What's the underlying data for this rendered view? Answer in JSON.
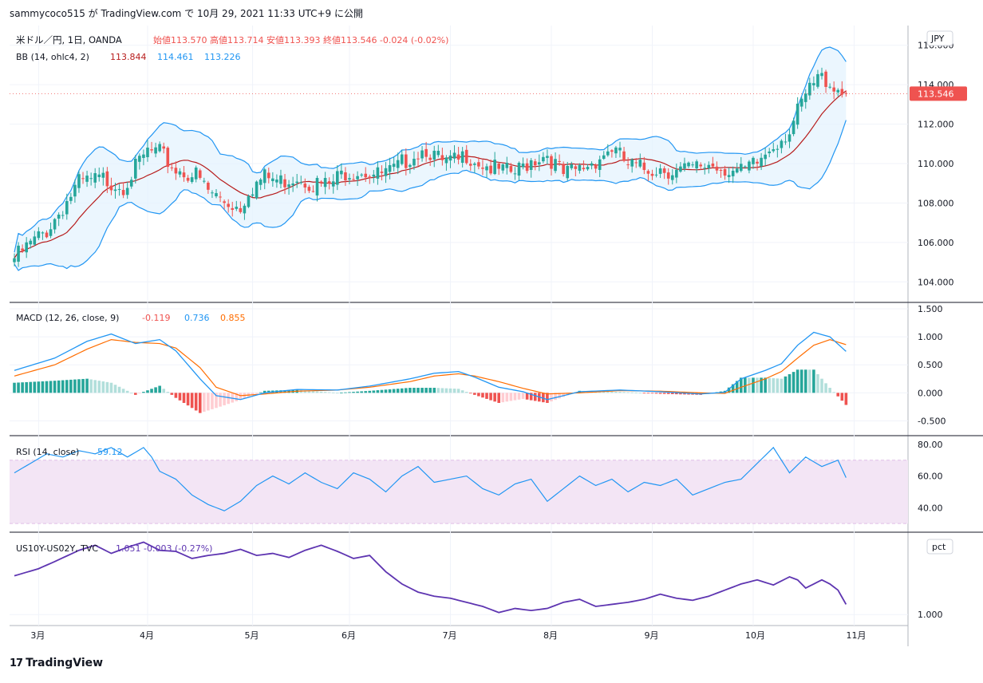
{
  "header": {
    "text": "sammycoco515 が TradingView.com で 10月 29, 2021 11:33 UTC+9 に公開"
  },
  "footer": {
    "logo_text": "TradingView",
    "logo_icon": "tradingview-logo-icon"
  },
  "colors": {
    "up": "#26a69a",
    "down": "#ef5350",
    "bb_basis": "#b71c1c",
    "bb_band": "#2196f3",
    "bb_fill": "#e3f2fd",
    "macd": "#2196f3",
    "signal": "#ff6d00",
    "hist_up": "#26a69a",
    "hist_up_fade": "#b2dfdb",
    "hist_down": "#ef5350",
    "hist_down_fade": "#ffcdd2",
    "rsi": "#2196f3",
    "rsi_band": "#e1bee7",
    "spread": "#5e35b1",
    "grid": "#f0f3fa",
    "price_label_bg": "#ef5350"
  },
  "chart_data": [
    {
      "type": "candlestick",
      "pane": "price",
      "title": "米ドル／円, 1日, OANDA",
      "ohlc_label": "始値113.570 高値113.714 安値113.393 終値113.546 -0.024 (-0.02%)",
      "bb_label_prefix": "BB (14, ohlc4, 2)",
      "bb_values": [
        "113.844",
        "114.461",
        "113.226"
      ],
      "currency": "JPY",
      "last_price_label": "113.546",
      "y_ticks": [
        "116.000",
        "114.000",
        "112.000",
        "110.000",
        "108.000",
        "106.000",
        "104.000"
      ],
      "ylim": [
        103,
        117
      ],
      "x_ticks": [
        "3月",
        "4月",
        "5月",
        "6月",
        "7月",
        "8月",
        "9月",
        "10月",
        "11月"
      ],
      "close_path_knots": [
        [
          0,
          105.2
        ],
        [
          8,
          106.6
        ],
        [
          16,
          109.0
        ],
        [
          22,
          109.2
        ],
        [
          27,
          108.9
        ],
        [
          33,
          110.6
        ],
        [
          36,
          110.5
        ],
        [
          40,
          109.7
        ],
        [
          45,
          109.4
        ],
        [
          48,
          108.6
        ],
        [
          52,
          108.1
        ],
        [
          56,
          107.8
        ],
        [
          58,
          108.7
        ],
        [
          62,
          109.3
        ],
        [
          66,
          109.1
        ],
        [
          70,
          109.4
        ],
        [
          74,
          109.0
        ],
        [
          78,
          108.9
        ],
        [
          82,
          109.6
        ],
        [
          86,
          109.7
        ],
        [
          90,
          109.4
        ],
        [
          94,
          109.6
        ],
        [
          98,
          110.4
        ],
        [
          102,
          110.8
        ],
        [
          106,
          110.0
        ],
        [
          110,
          110.1
        ],
        [
          112,
          110.5
        ],
        [
          116,
          110.0
        ],
        [
          120,
          109.6
        ],
        [
          124,
          109.5
        ],
        [
          128,
          110.2
        ],
        [
          132,
          110.5
        ],
        [
          136,
          109.4
        ],
        [
          140,
          109.7
        ],
        [
          144,
          110.2
        ],
        [
          148,
          110.8
        ],
        [
          152,
          109.9
        ],
        [
          156,
          109.7
        ],
        [
          160,
          109.8
        ],
        [
          164,
          109.6
        ],
        [
          168,
          109.7
        ],
        [
          172,
          110.0
        ],
        [
          176,
          109.8
        ],
        [
          180,
          109.5
        ],
        [
          184,
          110.0
        ],
        [
          188,
          111.0
        ],
        [
          192,
          111.7
        ],
        [
          196,
          113.4
        ],
        [
          199,
          114.3
        ],
        [
          201,
          114.3
        ],
        [
          204,
          113.8
        ],
        [
          206,
          113.55
        ]
      ]
    },
    {
      "type": "line",
      "pane": "macd",
      "label_prefix": "MACD (12, 26, close, 9)",
      "values": [
        "-0.119",
        "0.736",
        "0.855"
      ],
      "y_ticks": [
        "1.500",
        "1.000",
        "0.500",
        "0.000",
        "-0.500"
      ],
      "ylim": [
        -0.75,
        1.6
      ],
      "series": [
        {
          "knots": [
            [
              0,
              0.4
            ],
            [
              10,
              0.62
            ],
            [
              18,
              0.92
            ],
            [
              24,
              1.05
            ],
            [
              30,
              0.88
            ],
            [
              36,
              0.95
            ],
            [
              40,
              0.75
            ],
            [
              46,
              0.25
            ],
            [
              50,
              -0.05
            ],
            [
              56,
              -0.12
            ],
            [
              62,
              0.0
            ],
            [
              70,
              0.06
            ],
            [
              80,
              0.05
            ],
            [
              88,
              0.12
            ],
            [
              98,
              0.25
            ],
            [
              104,
              0.35
            ],
            [
              110,
              0.38
            ],
            [
              114,
              0.28
            ],
            [
              120,
              0.1
            ],
            [
              126,
              0.02
            ],
            [
              132,
              -0.12
            ],
            [
              140,
              0.02
            ],
            [
              150,
              0.05
            ],
            [
              160,
              0.02
            ],
            [
              170,
              -0.02
            ],
            [
              176,
              0.01
            ],
            [
              180,
              0.25
            ],
            [
              186,
              0.4
            ],
            [
              190,
              0.52
            ],
            [
              194,
              0.85
            ],
            [
              198,
              1.08
            ],
            [
              202,
              1.0
            ],
            [
              206,
              0.74
            ]
          ]
        },
        {
          "knots": [
            [
              0,
              0.3
            ],
            [
              10,
              0.5
            ],
            [
              18,
              0.78
            ],
            [
              24,
              0.95
            ],
            [
              30,
              0.9
            ],
            [
              36,
              0.88
            ],
            [
              40,
              0.8
            ],
            [
              46,
              0.45
            ],
            [
              50,
              0.1
            ],
            [
              56,
              -0.05
            ],
            [
              62,
              -0.02
            ],
            [
              70,
              0.03
            ],
            [
              80,
              0.05
            ],
            [
              88,
              0.1
            ],
            [
              98,
              0.2
            ],
            [
              104,
              0.3
            ],
            [
              110,
              0.34
            ],
            [
              114,
              0.3
            ],
            [
              120,
              0.2
            ],
            [
              126,
              0.08
            ],
            [
              132,
              -0.02
            ],
            [
              140,
              0.0
            ],
            [
              150,
              0.04
            ],
            [
              160,
              0.03
            ],
            [
              170,
              0.0
            ],
            [
              176,
              -0.01
            ],
            [
              180,
              0.1
            ],
            [
              186,
              0.25
            ],
            [
              190,
              0.38
            ],
            [
              194,
              0.62
            ],
            [
              198,
              0.85
            ],
            [
              202,
              0.95
            ],
            [
              206,
              0.86
            ]
          ]
        }
      ]
    },
    {
      "type": "line",
      "pane": "rsi",
      "label_prefix": "RSI (14, close)",
      "value": "59.12",
      "y_ticks": [
        "80.00",
        "60.00",
        "40.00"
      ],
      "ylim": [
        25,
        85
      ],
      "band": [
        30,
        70
      ],
      "knots": [
        [
          0,
          62
        ],
        [
          4,
          68
        ],
        [
          8,
          74
        ],
        [
          12,
          72
        ],
        [
          16,
          76
        ],
        [
          20,
          74
        ],
        [
          24,
          78
        ],
        [
          28,
          72
        ],
        [
          32,
          78
        ],
        [
          34,
          72
        ],
        [
          36,
          63
        ],
        [
          40,
          58
        ],
        [
          44,
          48
        ],
        [
          48,
          42
        ],
        [
          52,
          38
        ],
        [
          56,
          44
        ],
        [
          60,
          54
        ],
        [
          64,
          60
        ],
        [
          68,
          55
        ],
        [
          72,
          62
        ],
        [
          76,
          56
        ],
        [
          80,
          52
        ],
        [
          84,
          62
        ],
        [
          88,
          58
        ],
        [
          92,
          50
        ],
        [
          96,
          60
        ],
        [
          100,
          66
        ],
        [
          104,
          56
        ],
        [
          108,
          58
        ],
        [
          112,
          60
        ],
        [
          116,
          52
        ],
        [
          120,
          48
        ],
        [
          124,
          55
        ],
        [
          128,
          58
        ],
        [
          132,
          44
        ],
        [
          136,
          52
        ],
        [
          140,
          60
        ],
        [
          144,
          54
        ],
        [
          148,
          58
        ],
        [
          152,
          50
        ],
        [
          156,
          56
        ],
        [
          160,
          54
        ],
        [
          164,
          58
        ],
        [
          168,
          48
        ],
        [
          172,
          52
        ],
        [
          176,
          56
        ],
        [
          180,
          58
        ],
        [
          184,
          68
        ],
        [
          188,
          78
        ],
        [
          192,
          62
        ],
        [
          196,
          72
        ],
        [
          200,
          66
        ],
        [
          204,
          70
        ],
        [
          206,
          59
        ]
      ]
    },
    {
      "type": "line",
      "pane": "spread",
      "label": "US10Y-US02Y, TVC",
      "value_text": "1.051 -0.003 (-0.27%)",
      "y_ticks": [
        "1.000"
      ],
      "unit_badge": "pct",
      "ylim": [
        0.9,
        1.8
      ],
      "knots": [
        [
          0,
          1.38
        ],
        [
          6,
          1.45
        ],
        [
          10,
          1.52
        ],
        [
          16,
          1.63
        ],
        [
          20,
          1.68
        ],
        [
          24,
          1.6
        ],
        [
          28,
          1.66
        ],
        [
          32,
          1.71
        ],
        [
          36,
          1.63
        ],
        [
          40,
          1.62
        ],
        [
          44,
          1.55
        ],
        [
          48,
          1.58
        ],
        [
          52,
          1.6
        ],
        [
          56,
          1.64
        ],
        [
          60,
          1.58
        ],
        [
          64,
          1.6
        ],
        [
          68,
          1.56
        ],
        [
          72,
          1.63
        ],
        [
          76,
          1.68
        ],
        [
          80,
          1.62
        ],
        [
          84,
          1.55
        ],
        [
          88,
          1.58
        ],
        [
          92,
          1.42
        ],
        [
          96,
          1.3
        ],
        [
          100,
          1.22
        ],
        [
          104,
          1.18
        ],
        [
          108,
          1.16
        ],
        [
          112,
          1.12
        ],
        [
          116,
          1.08
        ],
        [
          120,
          1.02
        ],
        [
          124,
          1.06
        ],
        [
          128,
          1.04
        ],
        [
          132,
          1.06
        ],
        [
          136,
          1.12
        ],
        [
          140,
          1.15
        ],
        [
          144,
          1.08
        ],
        [
          148,
          1.1
        ],
        [
          152,
          1.12
        ],
        [
          156,
          1.15
        ],
        [
          160,
          1.2
        ],
        [
          164,
          1.16
        ],
        [
          168,
          1.14
        ],
        [
          172,
          1.18
        ],
        [
          176,
          1.24
        ],
        [
          180,
          1.3
        ],
        [
          184,
          1.34
        ],
        [
          188,
          1.29
        ],
        [
          192,
          1.37
        ],
        [
          194,
          1.34
        ],
        [
          196,
          1.26
        ],
        [
          200,
          1.34
        ],
        [
          202,
          1.3
        ],
        [
          204,
          1.24
        ],
        [
          206,
          1.1
        ]
      ]
    }
  ]
}
